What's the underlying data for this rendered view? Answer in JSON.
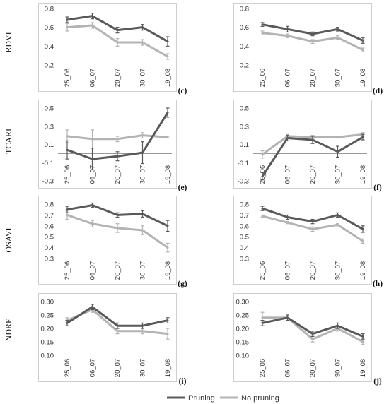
{
  "colors": {
    "pruning": "#595959",
    "no_pruning": "#b3b3b3",
    "frame": "#cfcfcf",
    "zero_line": "#8c8c8c"
  },
  "legend": {
    "pruning": "Pruning",
    "no_pruning": "No pruning",
    "position": "bottom-center"
  },
  "row_labels": [
    "RDVI",
    "TCARI",
    "OSAVI",
    "NDRE"
  ],
  "chart_data": [
    {
      "type": "line",
      "panel": "(c)",
      "row": 0,
      "col": 0,
      "categories": [
        "25_06",
        "06_07",
        "20_07",
        "30_07",
        "19_08"
      ],
      "yticks": [
        "0.8",
        "0.6",
        "0.4",
        "0.2"
      ],
      "ylim": [
        0.2,
        0.8
      ],
      "series": [
        {
          "name": "Pruning",
          "values": [
            0.68,
            0.72,
            0.57,
            0.6,
            0.45
          ],
          "err": [
            0.03,
            0.03,
            0.03,
            0.03,
            0.05
          ]
        },
        {
          "name": "No pruning",
          "values": [
            0.6,
            0.62,
            0.44,
            0.44,
            0.29
          ],
          "err": [
            0.04,
            0.03,
            0.04,
            0.03,
            0.03
          ]
        }
      ]
    },
    {
      "type": "line",
      "panel": "(d)",
      "row": 0,
      "col": 1,
      "categories": [
        "25_06",
        "06_07",
        "20_07",
        "30_07",
        "19_08"
      ],
      "yticks": [
        "0.8",
        "0.6",
        "0.4",
        "0.2"
      ],
      "ylim": [
        0.2,
        0.8
      ],
      "series": [
        {
          "name": "Pruning",
          "values": [
            0.63,
            0.58,
            0.53,
            0.58,
            0.46
          ],
          "err": [
            0.02,
            0.03,
            0.02,
            0.02,
            0.03
          ]
        },
        {
          "name": "No pruning",
          "values": [
            0.54,
            0.51,
            0.45,
            0.49,
            0.36
          ],
          "err": [
            0.02,
            0.02,
            0.02,
            0.02,
            0.02
          ]
        }
      ]
    },
    {
      "type": "line",
      "panel": "(e)",
      "row": 1,
      "col": 0,
      "categories": [
        "25_06",
        "06_07",
        "20_07",
        "30_07",
        "19_08"
      ],
      "yticks": [
        "0.5",
        "0.3",
        "0.1",
        "-0.1",
        "-0.3"
      ],
      "ylim": [
        -0.3,
        0.5
      ],
      "zero_line": true,
      "series": [
        {
          "name": "Pruning",
          "values": [
            0.04,
            -0.06,
            -0.03,
            0.01,
            0.45
          ],
          "err": [
            0.1,
            0.12,
            0.05,
            0.12,
            0.05
          ]
        },
        {
          "name": "No pruning",
          "values": [
            0.19,
            0.16,
            0.16,
            0.2,
            0.18
          ],
          "err": [
            0.07,
            0.1,
            0.03,
            0.03,
            0.01
          ]
        }
      ]
    },
    {
      "type": "line",
      "panel": "(f)",
      "row": 1,
      "col": 1,
      "categories": [
        "25_06",
        "06_07",
        "20_07",
        "30_07",
        "19_08"
      ],
      "yticks": [
        "0.5",
        "0.3",
        "0.1",
        "-0.1",
        "-0.3"
      ],
      "ylim": [
        -0.3,
        0.5
      ],
      "zero_line": true,
      "series": [
        {
          "name": "Pruning",
          "values": [
            -0.25,
            0.17,
            0.15,
            0.02,
            0.18
          ],
          "err": [
            0.04,
            0.03,
            0.04,
            0.06,
            0.03
          ]
        },
        {
          "name": "No pruning",
          "values": [
            -0.01,
            0.19,
            0.18,
            0.18,
            0.21
          ],
          "err": [
            0.04,
            0.02,
            0.02,
            0.01,
            0.02
          ]
        }
      ]
    },
    {
      "type": "line",
      "panel": "(g)",
      "row": 2,
      "col": 0,
      "categories": [
        "25_06",
        "06_07",
        "20_07",
        "30_07",
        "19_08"
      ],
      "yticks": [
        "0.8",
        "0.7",
        "0.6",
        "0.5",
        "0.4",
        "0.3"
      ],
      "ylim": [
        0.3,
        0.8
      ],
      "series": [
        {
          "name": "Pruning",
          "values": [
            0.75,
            0.79,
            0.7,
            0.71,
            0.6
          ],
          "err": [
            0.03,
            0.02,
            0.02,
            0.03,
            0.05
          ]
        },
        {
          "name": "No pruning",
          "values": [
            0.7,
            0.62,
            0.58,
            0.56,
            0.4
          ],
          "err": [
            0.04,
            0.03,
            0.04,
            0.04,
            0.04
          ]
        }
      ]
    },
    {
      "type": "line",
      "panel": "(h)",
      "row": 2,
      "col": 1,
      "categories": [
        "25_06",
        "06_07",
        "20_07",
        "30_07",
        "19_08"
      ],
      "yticks": [
        "0.8",
        "0.7",
        "0.6",
        "0.5",
        "0.4",
        "0.3"
      ],
      "ylim": [
        0.3,
        0.8
      ],
      "series": [
        {
          "name": "Pruning",
          "values": [
            0.76,
            0.68,
            0.64,
            0.7,
            0.57
          ],
          "err": [
            0.02,
            0.02,
            0.02,
            0.02,
            0.03
          ]
        },
        {
          "name": "No pruning",
          "values": [
            0.69,
            0.63,
            0.57,
            0.61,
            0.46
          ],
          "err": [
            0.01,
            0.01,
            0.02,
            0.01,
            0.02
          ]
        }
      ]
    },
    {
      "type": "line",
      "panel": "(i)",
      "row": 3,
      "col": 0,
      "categories": [
        "25_06",
        "06_07",
        "20_07",
        "30_07",
        "19_08"
      ],
      "yticks": [
        "0.30",
        "0.25",
        "0.20",
        "0.15",
        "0.10"
      ],
      "ylim": [
        0.1,
        0.3
      ],
      "series": [
        {
          "name": "Pruning",
          "values": [
            0.22,
            0.28,
            0.21,
            0.21,
            0.23
          ],
          "err": [
            0.01,
            0.01,
            0.01,
            0.01,
            0.01
          ]
        },
        {
          "name": "No pruning",
          "values": [
            0.23,
            0.27,
            0.19,
            0.19,
            0.18
          ],
          "err": [
            0.01,
            0.01,
            0.01,
            0.01,
            0.02
          ]
        }
      ]
    },
    {
      "type": "line",
      "panel": "(j)",
      "row": 3,
      "col": 1,
      "categories": [
        "25_06",
        "06_07",
        "20_07",
        "30_07",
        "19_08"
      ],
      "yticks": [
        "0.30",
        "0.25",
        "0.20",
        "0.15",
        "0.10"
      ],
      "ylim": [
        0.1,
        0.3
      ],
      "series": [
        {
          "name": "Pruning",
          "values": [
            0.22,
            0.24,
            0.18,
            0.21,
            0.17
          ],
          "err": [
            0.01,
            0.01,
            0.01,
            0.01,
            0.01
          ]
        },
        {
          "name": "No pruning",
          "values": [
            0.24,
            0.24,
            0.16,
            0.2,
            0.15
          ],
          "err": [
            0.02,
            0.01,
            0.01,
            0.01,
            0.01
          ]
        }
      ]
    }
  ]
}
